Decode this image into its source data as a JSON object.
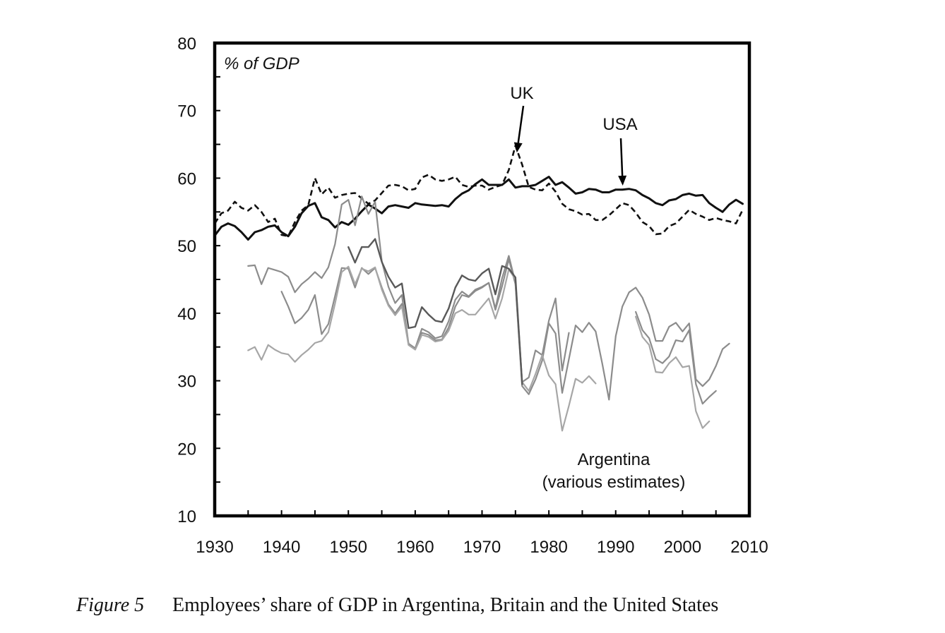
{
  "caption": {
    "figure_label": "Figure 5",
    "text": "Employees’ share of GDP in Argentina, Britain and the United States"
  },
  "chart_data": {
    "type": "line",
    "unit_label": "% of GDP",
    "xlim": [
      1930,
      2010
    ],
    "ylim": [
      10,
      80
    ],
    "x_ticks": [
      1930,
      1940,
      1950,
      1960,
      1970,
      1980,
      1990,
      2000,
      2010
    ],
    "y_ticks": [
      10,
      20,
      30,
      40,
      50,
      60,
      70,
      80
    ],
    "grid": false,
    "annotations": [
      {
        "text": "UK",
        "arrow_to": [
          1975,
          64
        ]
      },
      {
        "text": "USA",
        "arrow_to": [
          1991,
          59
        ]
      },
      {
        "text": "Argentina"
      },
      {
        "text": "(various estimates)"
      }
    ],
    "series": [
      {
        "name": "USA",
        "color": "#111111",
        "dash": "none",
        "width": 3,
        "x": [
          1930,
          1931,
          1932,
          1933,
          1934,
          1935,
          1936,
          1937,
          1938,
          1939,
          1940,
          1941,
          1942,
          1943,
          1944,
          1945,
          1946,
          1947,
          1948,
          1949,
          1950,
          1951,
          1952,
          1953,
          1954,
          1955,
          1956,
          1957,
          1958,
          1959,
          1960,
          1961,
          1962,
          1963,
          1964,
          1965,
          1966,
          1967,
          1968,
          1969,
          1970,
          1971,
          1972,
          1973,
          1974,
          1975,
          1976,
          1977,
          1978,
          1979,
          1980,
          1981,
          1982,
          1983,
          1984,
          1985,
          1986,
          1987,
          1988,
          1989,
          1990,
          1991,
          1992,
          1993,
          1994,
          1995,
          1996,
          1997,
          1998,
          1999,
          2000,
          2001,
          2002,
          2003,
          2004,
          2005,
          2006,
          2007,
          2008,
          2009
        ],
        "y": [
          51.5,
          52.8,
          53.3,
          52.9,
          52.0,
          50.9,
          52.0,
          52.3,
          52.8,
          53.0,
          52.0,
          51.4,
          52.8,
          54.8,
          55.9,
          56.3,
          54.2,
          53.8,
          52.7,
          53.5,
          53.1,
          54.0,
          55.1,
          56.1,
          55.5,
          54.8,
          55.8,
          56.0,
          55.8,
          55.6,
          56.3,
          56.1,
          56.0,
          55.9,
          56.0,
          55.8,
          56.9,
          57.7,
          58.2,
          59.1,
          59.8,
          59.0,
          59.0,
          59.0,
          59.8,
          58.6,
          58.8,
          58.8,
          59.0,
          59.6,
          60.2,
          59.0,
          59.4,
          58.6,
          57.7,
          57.9,
          58.4,
          58.3,
          57.9,
          57.9,
          58.3,
          58.3,
          58.4,
          58.2,
          57.5,
          57.0,
          56.3,
          56.0,
          56.7,
          56.9,
          57.5,
          57.7,
          57.4,
          57.5,
          56.3,
          55.6,
          55.0,
          56.1,
          56.8,
          56.2
        ]
      },
      {
        "name": "UK",
        "color": "#111111",
        "dash": "8,5",
        "width": 2.6,
        "x": [
          1930,
          1931,
          1932,
          1933,
          1934,
          1935,
          1936,
          1937,
          1938,
          1939,
          1940,
          1941,
          1942,
          1943,
          1944,
          1945,
          1946,
          1947,
          1948,
          1949,
          1950,
          1951,
          1952,
          1953,
          1954,
          1955,
          1956,
          1957,
          1958,
          1959,
          1960,
          1961,
          1962,
          1963,
          1964,
          1965,
          1966,
          1967,
          1968,
          1969,
          1970,
          1971,
          1972,
          1973,
          1974,
          1975,
          1976,
          1977,
          1978,
          1979,
          1980,
          1981,
          1982,
          1983,
          1984,
          1985,
          1986,
          1987,
          1988,
          1989,
          1990,
          1991,
          1992,
          1993,
          1994,
          1995,
          1996,
          1997,
          1998,
          1999,
          2000,
          2001,
          2002,
          2003,
          2004,
          2005,
          2006,
          2007,
          2008,
          2009
        ],
        "y": [
          53.3,
          54.8,
          55.2,
          56.5,
          55.6,
          55.2,
          56.0,
          55.0,
          53.5,
          54.0,
          51.6,
          51.4,
          53.5,
          55.2,
          56.0,
          60.0,
          57.6,
          58.6,
          57.1,
          57.5,
          57.7,
          57.8,
          57.0,
          56.2,
          56.7,
          57.8,
          58.9,
          59.0,
          58.8,
          58.2,
          58.4,
          60.1,
          60.5,
          59.8,
          59.6,
          59.8,
          60.2,
          59.0,
          58.7,
          58.9,
          58.9,
          58.3,
          58.7,
          59.0,
          61.2,
          64.8,
          62.0,
          58.7,
          58.3,
          58.2,
          59.2,
          58.0,
          56.2,
          55.4,
          55.1,
          54.6,
          54.7,
          53.8,
          53.8,
          54.5,
          55.4,
          56.3,
          56.0,
          54.9,
          53.5,
          52.9,
          51.7,
          51.8,
          52.9,
          53.3,
          54.3,
          55.3,
          54.7,
          54.3,
          53.8,
          54.1,
          53.8,
          53.6,
          53.3,
          55.3
        ]
      },
      {
        "name": "Argentina estimate 1",
        "color": "#8c8c8c",
        "dash": "none",
        "width": 2.2,
        "x": [
          1935,
          1936,
          1937,
          1938,
          1939,
          1940,
          1941,
          1942,
          1943,
          1944,
          1945,
          1946,
          1947,
          1948,
          1949,
          1950,
          1951,
          1952,
          1953,
          1954,
          1955,
          1956,
          1957,
          1958,
          1959,
          1960,
          1961,
          1962,
          1963,
          1964,
          1965,
          1966,
          1967,
          1968,
          1969,
          1970,
          1971,
          1972,
          1973,
          1974,
          1975,
          1976,
          1977,
          1978,
          1979,
          1980,
          1981,
          1982,
          1983
        ],
        "y": [
          47.0,
          47.1,
          44.3,
          46.7,
          46.4,
          46.1,
          45.4,
          43.1,
          44.3,
          45.1,
          46.1,
          45.2,
          46.8,
          50.2,
          56.1,
          56.8,
          53.0,
          57.3,
          54.7,
          56.5,
          47.7,
          43.9,
          41.5,
          42.7,
          35.5,
          34.8,
          37.1,
          36.8,
          36.0,
          36.1,
          37.9,
          41.0,
          42.7,
          42.4,
          43.3,
          43.8,
          44.5,
          40.7,
          45.2,
          48.5,
          44.5,
          29.8,
          30.5,
          34.5,
          33.8,
          38.9,
          42.2,
          31.5,
          37.1
        ]
      },
      {
        "name": "Argentina estimate 2",
        "color": "#8c8c8c",
        "dash": "none",
        "width": 2.2,
        "x": [
          1940,
          1941,
          1942,
          1943,
          1944,
          1945,
          1946,
          1947,
          1948,
          1949,
          1950,
          1951,
          1952,
          1953,
          1954,
          1955,
          1956,
          1957,
          1958,
          1959,
          1960,
          1961,
          1962,
          1963,
          1964,
          1965,
          1966,
          1967,
          1968,
          1969,
          1970,
          1971,
          1972,
          1973,
          1974,
          1975,
          1976,
          1977,
          1978,
          1979,
          1980,
          1981,
          1982,
          1983,
          1984,
          1985,
          1986,
          1987,
          1988,
          1989,
          1990,
          1991,
          1992,
          1993,
          1994,
          1995,
          1996,
          1997,
          1998,
          1999,
          2000,
          2001,
          2002,
          2003,
          2004,
          2005,
          2006,
          2007
        ],
        "y": [
          43.2,
          41.0,
          38.5,
          39.3,
          40.5,
          42.7,
          36.9,
          38.4,
          42.5,
          46.7,
          46.6,
          43.8,
          46.7,
          45.8,
          46.7,
          43.8,
          41.3,
          40.0,
          41.4,
          35.5,
          34.8,
          37.7,
          37.2,
          36.3,
          36.6,
          38.8,
          42.0,
          43.2,
          42.5,
          43.5,
          43.9,
          44.5,
          40.5,
          44.0,
          48.0,
          44.3,
          29.2,
          28.0,
          30.2,
          33.0,
          38.5,
          37.0,
          28.2,
          33.2,
          38.2,
          37.2,
          38.6,
          37.3,
          32.5,
          27.2,
          36.6,
          41.0,
          43.1,
          43.8,
          42.3,
          39.8,
          35.9,
          35.9,
          38.0,
          38.6,
          37.3,
          38.5,
          30.2,
          29.2,
          30.2,
          32.2,
          34.7,
          35.5
        ]
      },
      {
        "name": "Argentina estimate 3",
        "color": "#a6a6a6",
        "dash": "none",
        "width": 2.2,
        "x": [
          1935,
          1936,
          1937,
          1938,
          1939,
          1940,
          1941,
          1942,
          1943,
          1944,
          1945,
          1946,
          1947,
          1948,
          1949,
          1950,
          1951,
          1952,
          1953,
          1954,
          1955,
          1956,
          1957,
          1958,
          1959,
          1960,
          1961,
          1962,
          1963,
          1964,
          1965,
          1966,
          1967,
          1968,
          1969,
          1970,
          1971,
          1972,
          1973,
          1974,
          1975,
          1976,
          1977,
          1978,
          1979,
          1980,
          1981,
          1982,
          1983,
          1984,
          1985,
          1986,
          1987
        ],
        "y": [
          34.5,
          35.0,
          33.1,
          35.3,
          34.6,
          34.1,
          33.9,
          32.8,
          33.8,
          34.6,
          35.6,
          35.9,
          37.2,
          41.4,
          46.1,
          46.9,
          44.3,
          46.6,
          46.2,
          46.8,
          43.5,
          41.1,
          39.7,
          41.0,
          35.3,
          34.6,
          36.8,
          36.5,
          35.8,
          36.0,
          37.4,
          40.0,
          40.5,
          39.8,
          39.8,
          41.0,
          42.2,
          39.2,
          42.2,
          46.5,
          45.0,
          29.8,
          28.5,
          31.0,
          33.8,
          30.8,
          29.5,
          22.6,
          26.3,
          30.3,
          29.7,
          30.7,
          29.6
        ]
      },
      {
        "name": "Argentina estimate 4",
        "color": "#595959",
        "dash": "none",
        "width": 2.4,
        "x": [
          1950,
          1951,
          1952,
          1953,
          1954,
          1955,
          1956,
          1957,
          1958,
          1959,
          1960,
          1961,
          1962,
          1963,
          1964,
          1965,
          1966,
          1967,
          1968,
          1969,
          1970,
          1971,
          1972,
          1973,
          1974,
          1975,
          1976
        ],
        "y": [
          49.8,
          47.5,
          49.8,
          49.8,
          51.0,
          47.6,
          45.4,
          43.8,
          44.4,
          37.8,
          38.0,
          40.9,
          39.8,
          38.9,
          38.7,
          40.7,
          43.8,
          45.6,
          45.0,
          44.8,
          45.9,
          46.6,
          42.8,
          47.0,
          46.6,
          45.3,
          29.5
        ]
      },
      {
        "name": "Argentina estimate 5",
        "color": "#8c8c8c",
        "dash": "none",
        "width": 2.2,
        "x": [
          1993,
          1994,
          1995,
          1996,
          1997,
          1998,
          1999,
          2000,
          2001,
          2002,
          2003,
          2004,
          2005
        ],
        "y": [
          40.2,
          37.5,
          36.3,
          33.2,
          32.6,
          33.6,
          36.0,
          35.8,
          37.5,
          29.5,
          26.6,
          27.6,
          28.5
        ]
      },
      {
        "name": "Argentina estimate 6",
        "color": "#a6a6a6",
        "dash": "none",
        "width": 2.2,
        "x": [
          1993,
          1994,
          1995,
          1996,
          1997,
          1998,
          1999,
          2000,
          2001,
          2002,
          2003,
          2004
        ],
        "y": [
          39.5,
          36.5,
          35.3,
          31.3,
          31.2,
          32.6,
          33.5,
          32.0,
          32.2,
          25.5,
          23.0,
          24.0
        ]
      }
    ]
  }
}
